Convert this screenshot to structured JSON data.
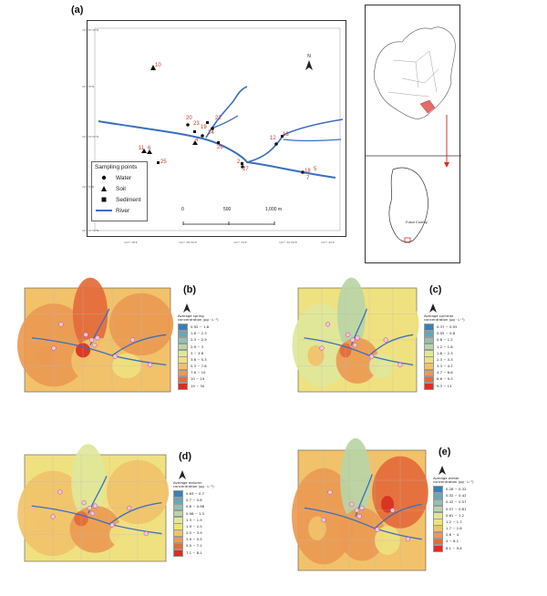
{
  "panels": {
    "a": {
      "letter": "(a)",
      "legend": {
        "title": "Sampling points",
        "items": [
          {
            "label": "Water",
            "symbol": "circle"
          },
          {
            "label": "Soil",
            "symbol": "triangle"
          },
          {
            "label": "Sediment",
            "symbol": "square"
          },
          {
            "label": "River",
            "symbol": "line"
          }
        ]
      },
      "scalebar": {
        "labels": [
          "0",
          "500",
          "1,000 m"
        ]
      },
      "north": "N",
      "points": [
        "10",
        "1",
        "2",
        "3",
        "4",
        "5",
        "6",
        "7",
        "8",
        "9",
        "11",
        "12",
        "13",
        "14",
        "15",
        "16",
        "17",
        "18",
        "19",
        "20",
        "21",
        "22",
        "23",
        "24",
        "25",
        "26",
        "27",
        "28"
      ],
      "inset_label": "Fusui County",
      "ticks_left": [
        "22° 35'30\"N",
        "22° 35'N",
        "22° 34'30\"N",
        "22° 34'N",
        "22° 33'30\"N"
      ],
      "ticks_bottom": [
        "107° 38'E",
        "107° 38'30\"E",
        "107° 39'E",
        "107° 39'30\"E",
        "107° 40'E"
      ]
    },
    "b": {
      "letter": "(b)",
      "title": "Average spring concentration (μg · L⁻¹)",
      "classes": [
        "0.92 ~ 1.8",
        "1.8 ~ 2.3",
        "2.3 ~ 2.9",
        "2.9 ~ 3",
        "3 ~ 3.6",
        "3.6 ~ 5.3",
        "5.3 ~ 7.6",
        "7.6 ~ 10",
        "10 ~ 19",
        "19 ~ 30"
      ]
    },
    "c": {
      "letter": "(c)",
      "title": "Average summer concentration (μg · L⁻¹)",
      "classes": [
        "0.37 ~ 0.55",
        "0.55 ~ 0.8",
        "0.8 ~ 1.2",
        "1.2 ~ 1.8",
        "1.8 ~ 2.3",
        "2.3 ~ 3.3",
        "3.3 ~ 4.7",
        "4.7 ~ 6.6",
        "6.6 ~ 9.3",
        "9.3 ~ 13"
      ]
    },
    "d": {
      "letter": "(d)",
      "title": "Average autumn concentration (μg · L⁻¹)",
      "classes": [
        "0.63 ~ 0.7",
        "0.7 ~ 0.8",
        "0.8 ~ 0.98",
        "0.98 ~ 1.3",
        "1.3 ~ 1.9",
        "1.9 ~ 2.5",
        "2.5 ~ 3.9",
        "3.9 ~ 5.5",
        "5.5 ~ 7.1",
        "7.1 ~ 8.1"
      ]
    },
    "e": {
      "letter": "(e)",
      "title": "Average winter concentration (μg · L⁻¹)",
      "classes": [
        "0.28 ~ 0.32",
        "0.32 ~ 0.42",
        "0.42 ~ 0.57",
        "0.57 ~ 0.81",
        "0.81 ~ 1.2",
        "1.2 ~ 1.7",
        "1.7 ~ 2.6",
        "2.6 ~ 4",
        "4 ~ 6.1",
        "6.1 ~ 9.4"
      ]
    }
  },
  "colors": {
    "ramp": [
      "#3b7fb5",
      "#6aa5b8",
      "#93c0b3",
      "#b9d5a6",
      "#dfe79a",
      "#efe180",
      "#f1c26a",
      "#ec9a52",
      "#e46b3b",
      "#d7301f"
    ],
    "river": "#3a6fbf"
  }
}
